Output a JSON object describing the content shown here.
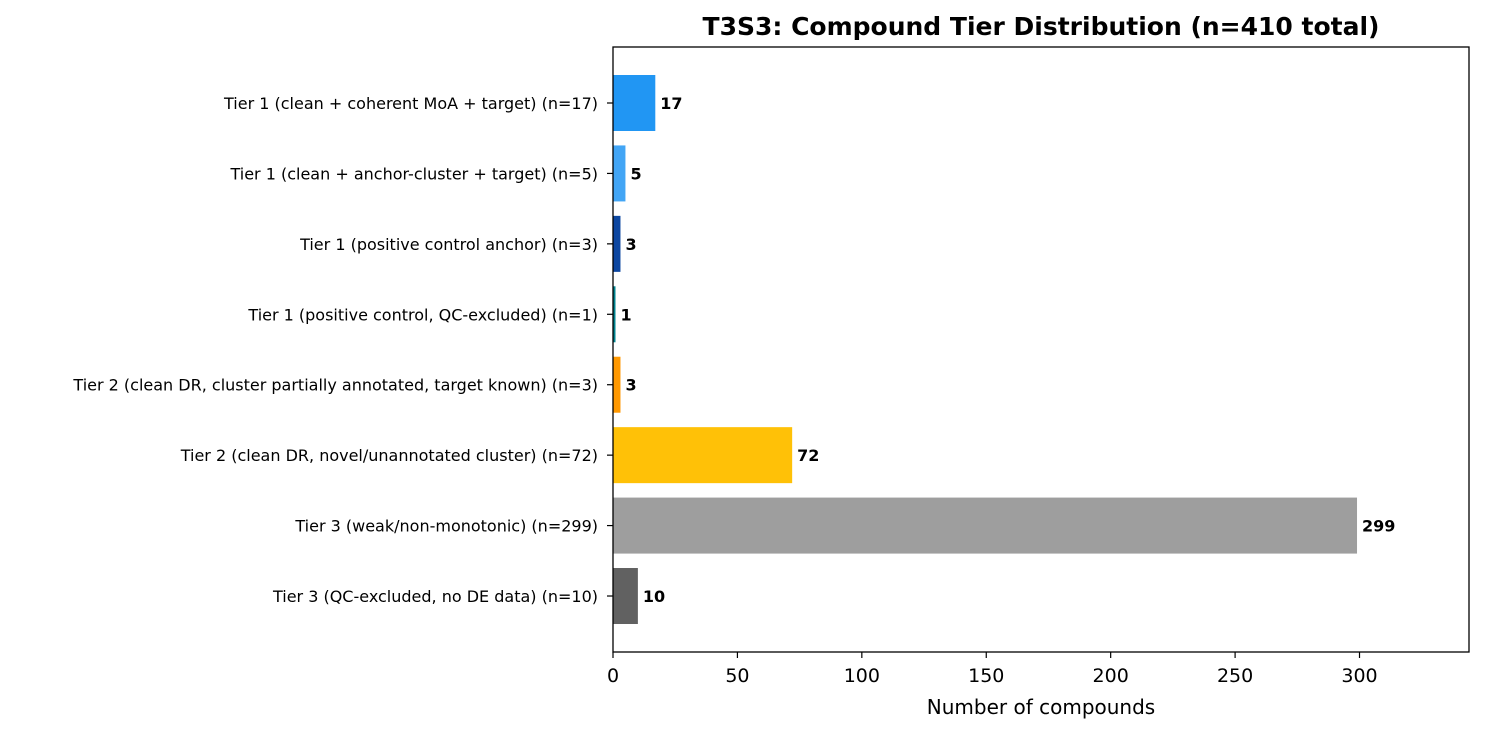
{
  "chart_data": {
    "type": "bar",
    "orientation": "horizontal",
    "title": "T3S3: Compound Tier Distribution (n=410 total)",
    "xlabel": "Number of compounds",
    "ylabel": "",
    "xlim": [
      0,
      344
    ],
    "xticks": [
      0,
      50,
      100,
      150,
      200,
      250,
      300
    ],
    "grid": false,
    "categories": [
      "Tier 1 (clean + coherent MoA + target) (n=17)",
      "Tier 1 (clean + anchor-cluster + target) (n=5)",
      "Tier 1 (positive control anchor) (n=3)",
      "Tier 1 (positive control, QC-excluded) (n=1)",
      "Tier 2 (clean DR, cluster partially annotated, target known) (n=3)",
      "Tier 2 (clean DR, novel/unannotated cluster) (n=72)",
      "Tier 3 (weak/non-monotonic) (n=299)",
      "Tier 3 (QC-excluded, no DE data) (n=10)"
    ],
    "values": [
      17,
      5,
      3,
      1,
      3,
      72,
      299,
      10
    ],
    "colors": [
      "#2196f3",
      "#42a5f5",
      "#0d47a1",
      "#00838f",
      "#ff9800",
      "#ffc107",
      "#9e9e9e",
      "#616161"
    ]
  }
}
